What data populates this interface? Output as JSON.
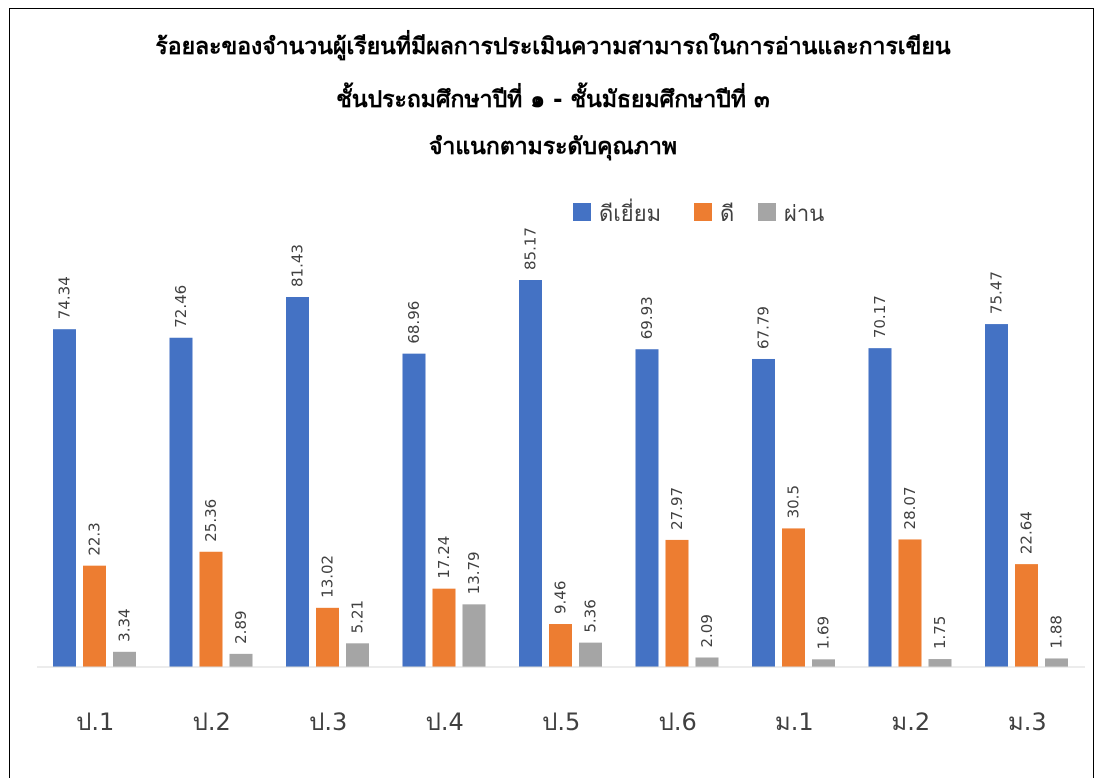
{
  "chart_data": {
    "type": "bar",
    "title": [
      "ร้อยละของจำนวนผู้เรียนที่มีผลการประเมินความสามารถในการอ่านและการเขียน",
      "ชั้นประถมศึกษาปีที่ ๑ - ชั้นมัธยมศึกษาปีที่ ๓",
      "จำแนกตามระดับคุณภาพ"
    ],
    "categories": [
      "ป.1",
      "ป.2",
      "ป.3",
      "ป.4",
      "ป.5",
      "ป.6",
      "ม.1",
      "ม.2",
      "ม.3"
    ],
    "series": [
      {
        "name": "ดีเยี่ยม",
        "color": "#4472C4",
        "values": [
          74.34,
          72.46,
          81.43,
          68.96,
          85.17,
          69.93,
          67.79,
          70.17,
          75.47
        ]
      },
      {
        "name": "ดี",
        "color": "#ED7D31",
        "values": [
          22.3,
          25.36,
          13.02,
          17.24,
          9.46,
          27.97,
          30.5,
          28.07,
          22.64
        ]
      },
      {
        "name": "ผ่าน",
        "color": "#A5A5A5",
        "values": [
          3.34,
          2.89,
          5.21,
          13.79,
          5.36,
          2.09,
          1.69,
          1.75,
          1.88
        ]
      }
    ],
    "ylim": [
      0,
      100
    ],
    "legend_position": "top-right",
    "grid": false
  }
}
